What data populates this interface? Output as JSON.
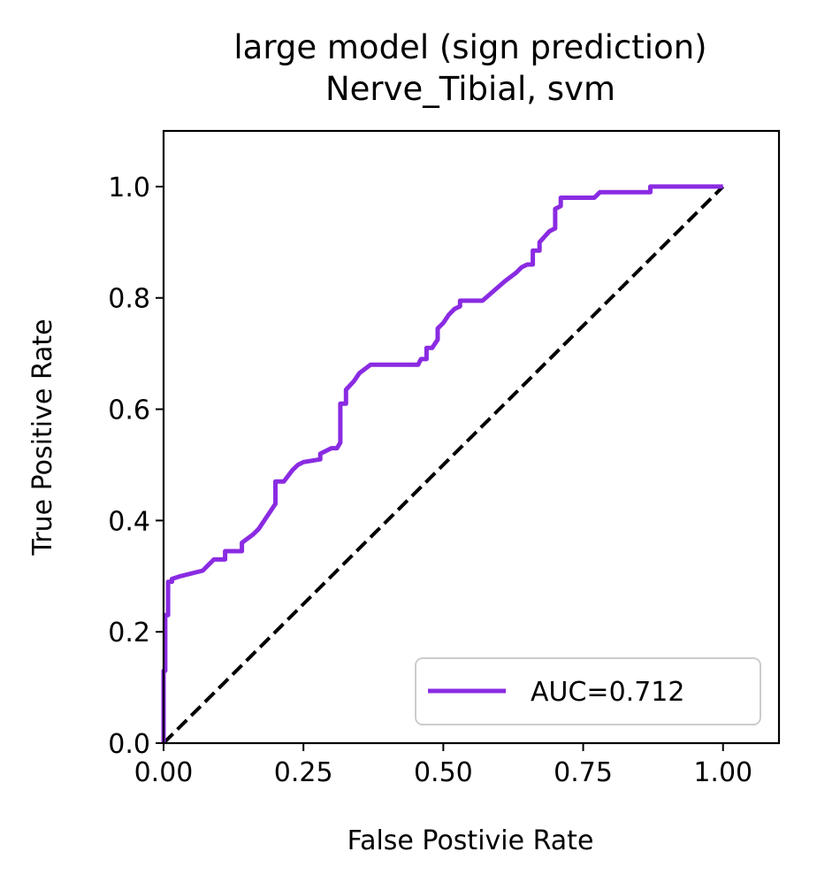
{
  "chart_data": {
    "type": "line",
    "title": "large model (sign prediction)",
    "subtitle": "Nerve_Tibial, svm",
    "xlabel": "False Postivie Rate",
    "ylabel": "True Positive Rate",
    "xlim": [
      0.0,
      1.1
    ],
    "ylim": [
      0.0,
      1.1
    ],
    "xticks": [
      0.0,
      0.25,
      0.5,
      0.75,
      1.0
    ],
    "xtick_labels": [
      "0.00",
      "0.25",
      "0.50",
      "0.75",
      "1.00"
    ],
    "yticks": [
      0.0,
      0.2,
      0.4,
      0.6,
      0.8,
      1.0
    ],
    "ytick_labels": [
      "0.0",
      "0.2",
      "0.4",
      "0.6",
      "0.8",
      "1.0"
    ],
    "grid": false,
    "legend_position": "lower-right",
    "series": [
      {
        "name": "AUC=0.712",
        "color": "#8a2be2",
        "style": "solid",
        "x": [
          0.0,
          0.0,
          0.003,
          0.003,
          0.008,
          0.008,
          0.015,
          0.015,
          0.03,
          0.03,
          0.07,
          0.08,
          0.09,
          0.11,
          0.11,
          0.14,
          0.14,
          0.16,
          0.17,
          0.18,
          0.2,
          0.2,
          0.215,
          0.23,
          0.24,
          0.25,
          0.28,
          0.28,
          0.3,
          0.31,
          0.316,
          0.316,
          0.326,
          0.326,
          0.34,
          0.35,
          0.37,
          0.39,
          0.455,
          0.46,
          0.47,
          0.47,
          0.48,
          0.49,
          0.49,
          0.5,
          0.51,
          0.52,
          0.53,
          0.53,
          0.57,
          0.61,
          0.63,
          0.64,
          0.65,
          0.66,
          0.66,
          0.672,
          0.672,
          0.69,
          0.7,
          0.7,
          0.71,
          0.71,
          0.77,
          0.78,
          0.87,
          0.87,
          1.0
        ],
        "y": [
          0.0,
          0.13,
          0.13,
          0.23,
          0.23,
          0.29,
          0.29,
          0.295,
          0.3,
          0.3,
          0.31,
          0.32,
          0.33,
          0.33,
          0.345,
          0.345,
          0.36,
          0.375,
          0.385,
          0.4,
          0.43,
          0.47,
          0.47,
          0.49,
          0.5,
          0.505,
          0.51,
          0.52,
          0.53,
          0.53,
          0.54,
          0.61,
          0.61,
          0.635,
          0.65,
          0.665,
          0.68,
          0.68,
          0.68,
          0.69,
          0.69,
          0.71,
          0.71,
          0.725,
          0.745,
          0.755,
          0.77,
          0.78,
          0.785,
          0.795,
          0.795,
          0.83,
          0.845,
          0.855,
          0.86,
          0.86,
          0.885,
          0.885,
          0.9,
          0.92,
          0.925,
          0.96,
          0.965,
          0.98,
          0.98,
          0.99,
          0.99,
          1.0,
          1.0
        ]
      },
      {
        "color": "#000000",
        "style": "dashed",
        "x": [
          0.0,
          1.0
        ],
        "y": [
          0.0,
          1.0
        ]
      }
    ]
  }
}
